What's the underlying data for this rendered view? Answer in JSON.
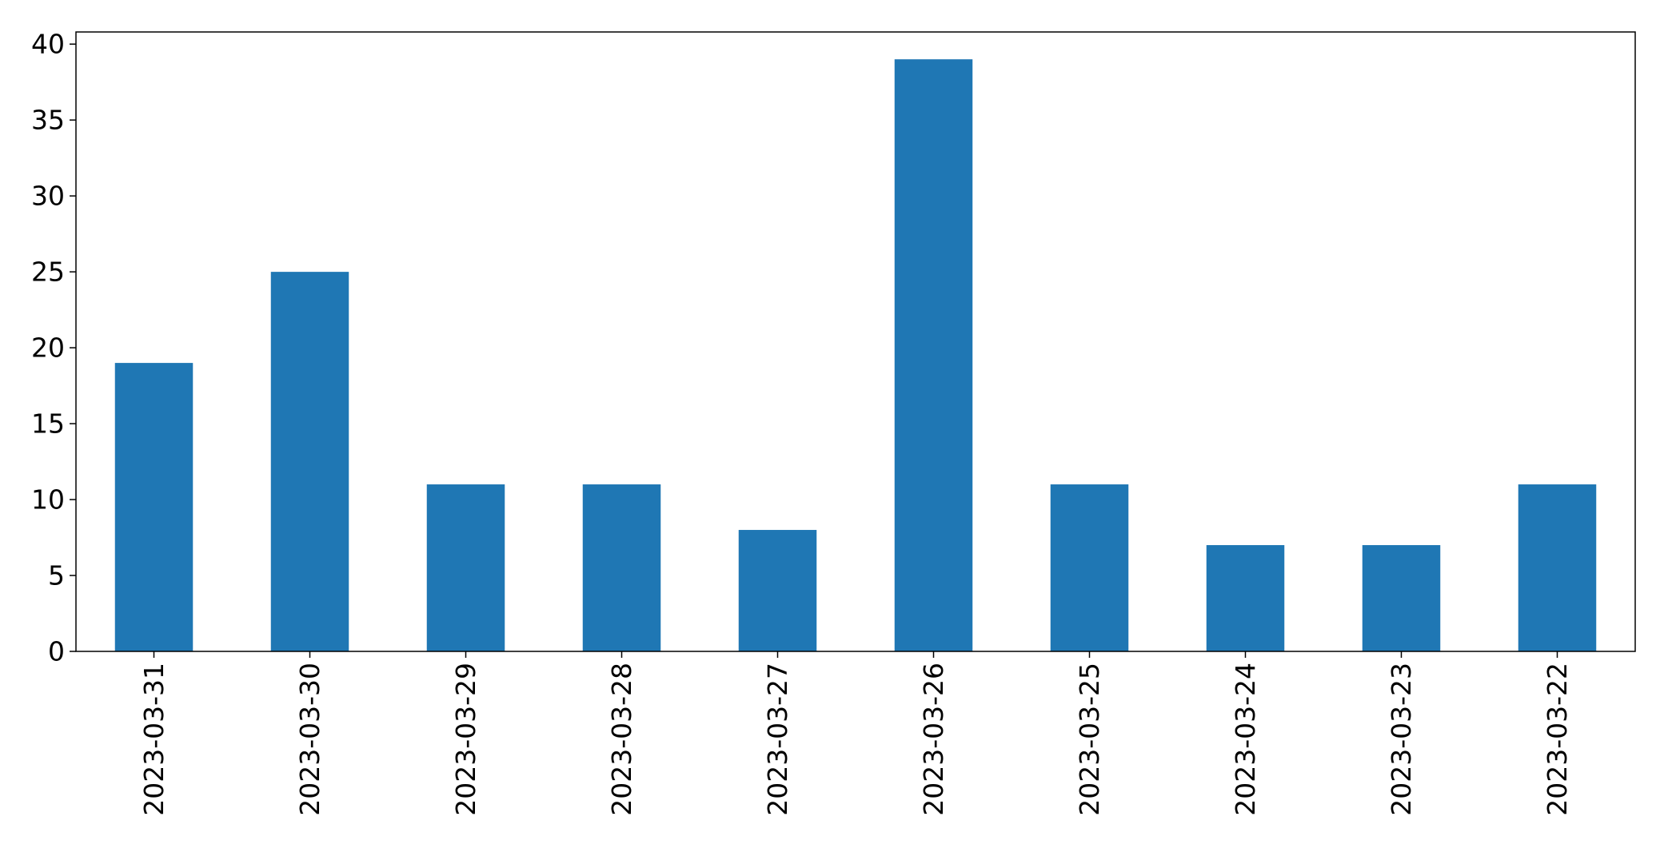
{
  "chart_data": {
    "type": "bar",
    "categories": [
      "2023-03-31",
      "2023-03-30",
      "2023-03-29",
      "2023-03-28",
      "2023-03-27",
      "2023-03-26",
      "2023-03-25",
      "2023-03-24",
      "2023-03-23",
      "2023-03-22"
    ],
    "values": [
      19,
      25,
      11,
      11,
      8,
      39,
      11,
      7,
      7,
      11
    ],
    "title": "",
    "xlabel": "",
    "ylabel": "",
    "ylim": [
      0,
      40.8
    ],
    "yticks": [
      0,
      5,
      10,
      15,
      20,
      25,
      30,
      35,
      40
    ],
    "grid": false,
    "legend": "none",
    "bar_color": "#1f77b4"
  }
}
